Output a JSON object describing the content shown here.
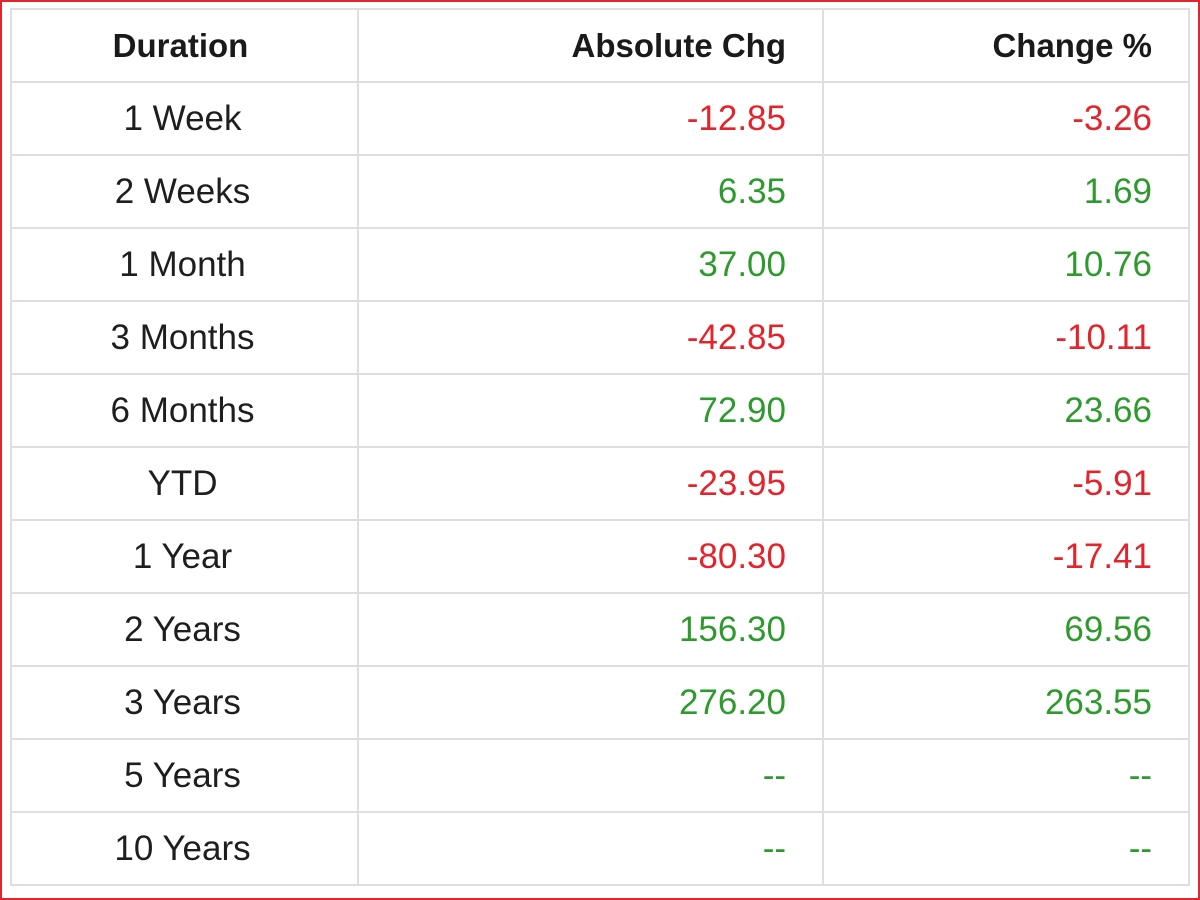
{
  "table": {
    "headers": {
      "duration": "Duration",
      "absolute_chg": "Absolute Chg",
      "change_pct": "Change %"
    },
    "rows": [
      {
        "duration": "1 Week",
        "absolute_chg": "-12.85",
        "change_pct": "-3.26",
        "trend": "neg"
      },
      {
        "duration": "2 Weeks",
        "absolute_chg": "6.35",
        "change_pct": "1.69",
        "trend": "pos"
      },
      {
        "duration": "1 Month",
        "absolute_chg": "37.00",
        "change_pct": "10.76",
        "trend": "pos"
      },
      {
        "duration": "3 Months",
        "absolute_chg": "-42.85",
        "change_pct": "-10.11",
        "trend": "neg"
      },
      {
        "duration": "6 Months",
        "absolute_chg": "72.90",
        "change_pct": "23.66",
        "trend": "pos"
      },
      {
        "duration": "YTD",
        "absolute_chg": "-23.95",
        "change_pct": "-5.91",
        "trend": "neg"
      },
      {
        "duration": "1 Year",
        "absolute_chg": "-80.30",
        "change_pct": "-17.41",
        "trend": "neg"
      },
      {
        "duration": "2 Years",
        "absolute_chg": "156.30",
        "change_pct": "69.56",
        "trend": "pos"
      },
      {
        "duration": "3 Years",
        "absolute_chg": "276.20",
        "change_pct": "263.55",
        "trend": "pos"
      },
      {
        "duration": "5 Years",
        "absolute_chg": "--",
        "change_pct": "--",
        "trend": "na"
      },
      {
        "duration": "10 Years",
        "absolute_chg": "--",
        "change_pct": "--",
        "trend": "na"
      }
    ]
  },
  "colors": {
    "negative": "#e3242b",
    "positive": "#2e9a2e",
    "frame_border": "#e0252b",
    "grid": "#dedede"
  }
}
